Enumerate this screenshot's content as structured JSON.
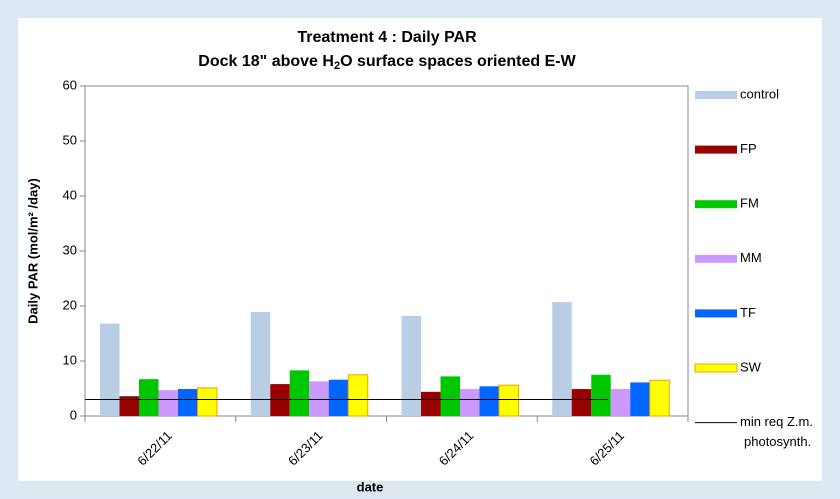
{
  "chart_data": {
    "type": "bar",
    "title": "Treatment 4 : Daily PAR",
    "subtitle_parts": [
      "Dock 18\" above H",
      "2",
      "O surface spaces oriented E-W"
    ],
    "x_label": "date",
    "y_label": "Daily PAR (mol/m² /day)",
    "categories": [
      "6/22/11",
      "6/23/11",
      "6/24/11",
      "6/25/11"
    ],
    "series": [
      {
        "name": "control",
        "color": "#b9cde5",
        "values": [
          16.8,
          18.9,
          18.2,
          20.7
        ]
      },
      {
        "name": "FP",
        "color": "#990000",
        "values": [
          3.6,
          5.8,
          4.4,
          4.9
        ]
      },
      {
        "name": "FM",
        "color": "#00c800",
        "values": [
          6.7,
          8.3,
          7.2,
          7.5
        ]
      },
      {
        "name": "MM",
        "color": "#cc99ff",
        "values": [
          4.7,
          6.3,
          4.9,
          4.9
        ]
      },
      {
        "name": "TF",
        "color": "#0066ff",
        "values": [
          4.9,
          6.6,
          5.4,
          6.1
        ]
      },
      {
        "name": "SW",
        "color": "#ffff00",
        "stroke": "#f0a000",
        "values": [
          5.1,
          7.5,
          5.6,
          6.5
        ]
      }
    ],
    "reference_line": {
      "label_lines": [
        "min req Z.m.",
        "photosynth."
      ],
      "value": 3,
      "color": "#000000"
    },
    "ylim": [
      0,
      60
    ],
    "yticks": [
      0,
      10,
      20,
      30,
      40,
      50,
      60
    ],
    "grid": false,
    "legend": "right"
  }
}
